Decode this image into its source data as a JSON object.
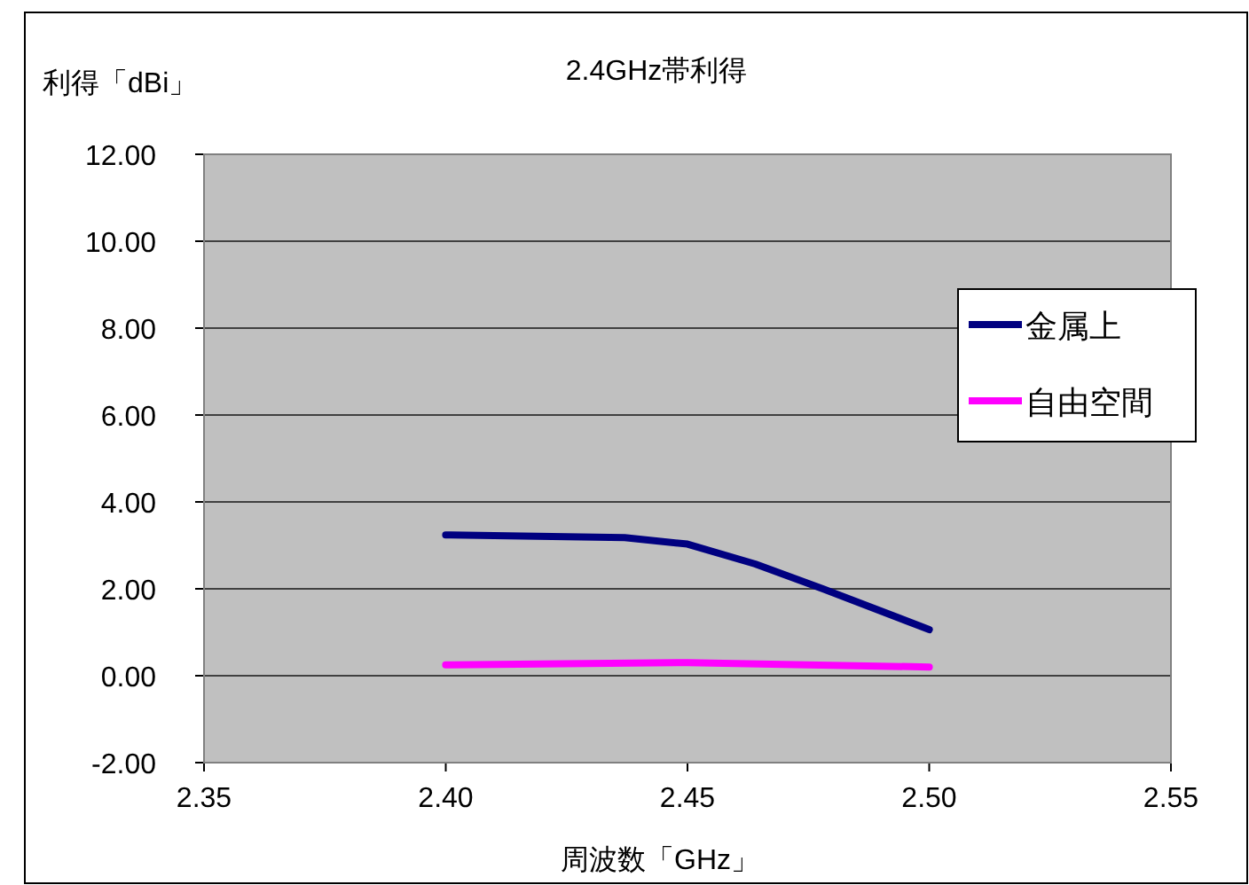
{
  "chart_data": {
    "type": "line",
    "title": "2.4GHz帯利得",
    "xlabel": "周波数「GHz」",
    "ylabel": "利得「dBi」",
    "series": [
      {
        "name": "金属上",
        "color": "#000080",
        "x": [
          2.4,
          2.437,
          2.45,
          2.464,
          2.478,
          2.5
        ],
        "values": [
          3.24,
          3.18,
          3.03,
          2.57,
          2.0,
          1.06
        ]
      },
      {
        "name": "自由空間",
        "color": "#ff00ff",
        "x": [
          2.4,
          2.45,
          2.5
        ],
        "values": [
          0.25,
          0.3,
          0.2
        ]
      }
    ],
    "xlim": [
      2.35,
      2.55
    ],
    "ylim": [
      -2,
      12
    ],
    "xticks": [
      {
        "value": 2.35,
        "label": "2.35"
      },
      {
        "value": 2.4,
        "label": "2.40"
      },
      {
        "value": 2.45,
        "label": "2.45"
      },
      {
        "value": 2.5,
        "label": "2.50"
      },
      {
        "value": 2.55,
        "label": "2.55"
      }
    ],
    "yticks": [
      {
        "value": -2,
        "label": "-2.00"
      },
      {
        "value": 0,
        "label": "0.00"
      },
      {
        "value": 2,
        "label": "2.00"
      },
      {
        "value": 4,
        "label": "4.00"
      },
      {
        "value": 6,
        "label": "6.00"
      },
      {
        "value": 8,
        "label": "8.00"
      },
      {
        "value": 10,
        "label": "10.00"
      },
      {
        "value": 12,
        "label": "12.00"
      }
    ],
    "grid": "y",
    "legend": "right",
    "marker": "none",
    "line_style": "solid"
  }
}
